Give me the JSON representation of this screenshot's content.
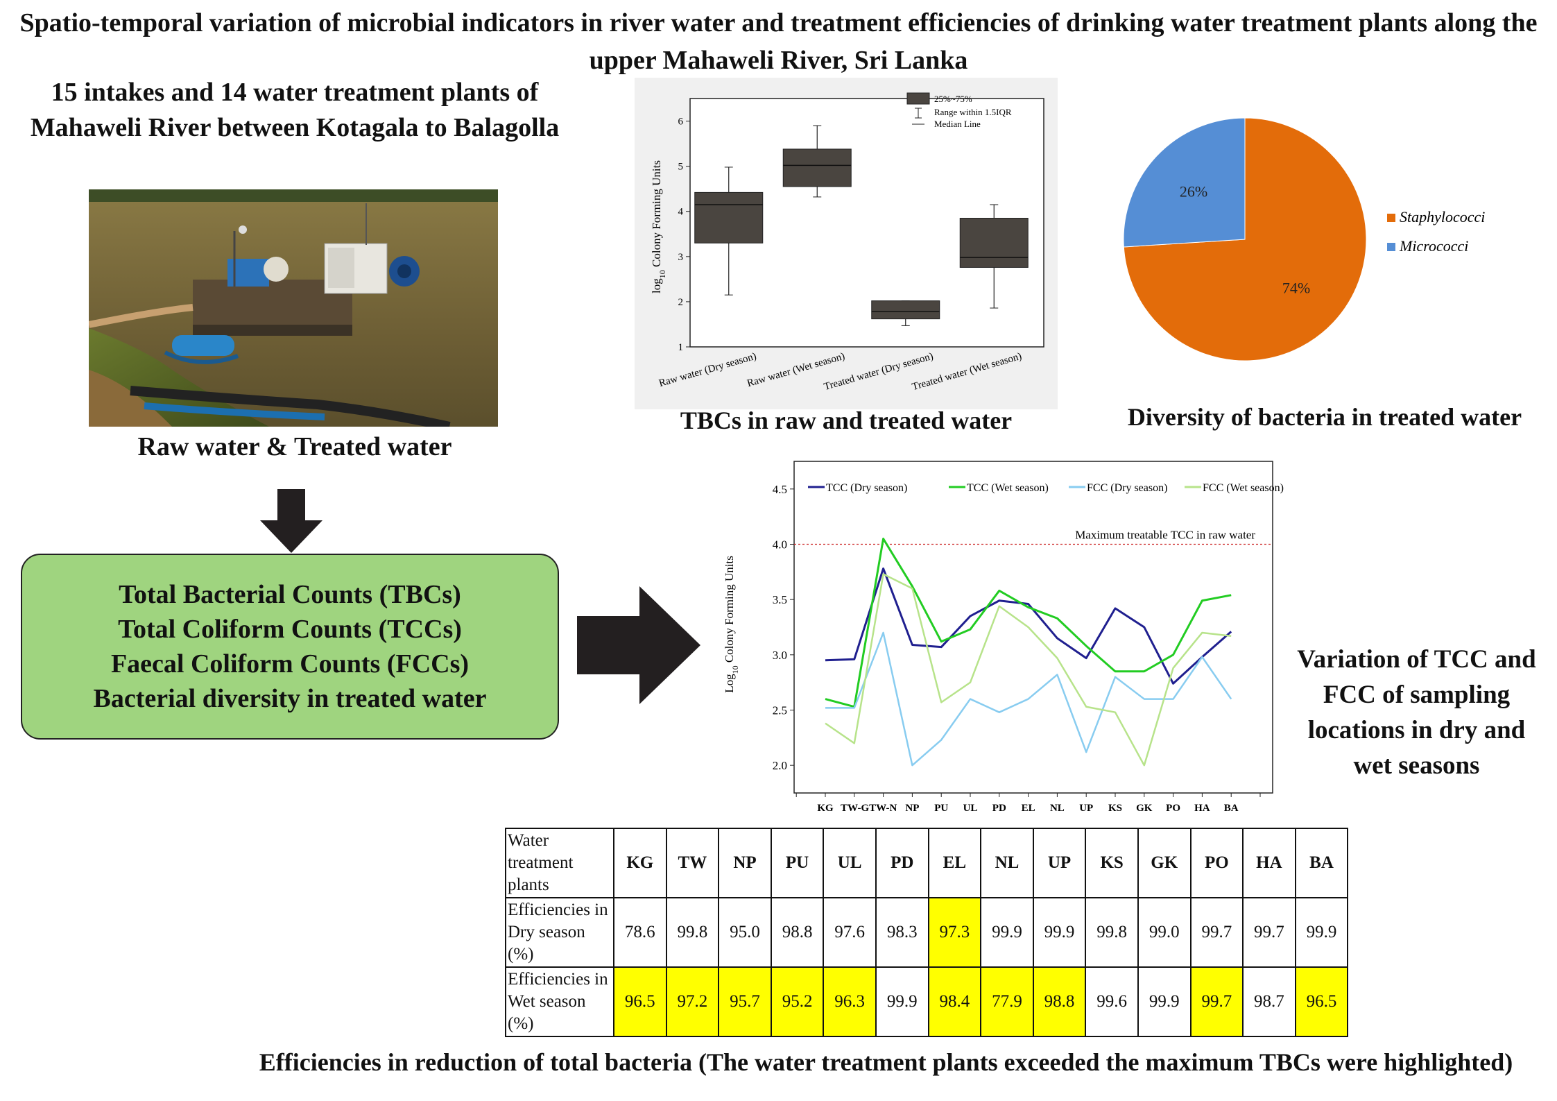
{
  "title": "Spatio-temporal variation of microbial indicators in river water and treatment efficiencies of drinking water treatment plants along the upper Mahaweli River, Sri Lanka",
  "left_panel": {
    "heading": "15 intakes and 14 water treatment plants of Mahaweli River between Kotagala to Balagolla",
    "photo_caption": "Raw water &  Treated water"
  },
  "parameters_box": {
    "items": [
      "Total Bacterial Counts (TBCs)",
      "Total Coliform Counts (TCCs)",
      "Faecal Coliform Counts (FCCs)",
      "Bacterial diversity in treated water"
    ]
  },
  "colors": {
    "box_fill": "#9fd47f",
    "arrow": "#231f20",
    "boxplot_fill": "#4a4540",
    "pie_orange": "#e36c0a",
    "pie_blue": "#558ed5",
    "tcc_dry": "#1f1f8f",
    "tcc_wet": "#22cc22",
    "fcc_dry": "#88ccf0",
    "fcc_wet": "#b7e38a",
    "threshold": "#cc2222",
    "highlight": "#ffff00"
  },
  "chart_data": [
    {
      "type": "box",
      "caption": "TBCs in raw and treated water",
      "ylabel_prefix": "log",
      "ylabel_sub": "10",
      "ylabel_suffix": " Colony Forming Units",
      "ylim": [
        1,
        6.5
      ],
      "yticks": [
        "1",
        "2",
        "3",
        "4",
        "5",
        "6"
      ],
      "legend": [
        "25%~75%",
        "Range within 1.5IQR",
        "Median Line"
      ],
      "legend_position": "top-right",
      "categories": [
        "Raw water (Dry season)",
        "Raw water (Wet season)",
        "Treated water (Dry season)",
        "Treated water (Wet season)"
      ],
      "boxes": [
        {
          "whisker_low": 2.15,
          "q1": 3.3,
          "median": 4.15,
          "q3": 4.42,
          "whisker_high": 4.98
        },
        {
          "whisker_low": 4.32,
          "q1": 4.55,
          "median": 5.02,
          "q3": 5.38,
          "whisker_high": 5.9
        },
        {
          "whisker_low": 1.47,
          "q1": 1.62,
          "median": 1.78,
          "q3": 2.02,
          "whisker_high": 2.02
        },
        {
          "whisker_low": 1.86,
          "q1": 2.76,
          "median": 2.98,
          "q3": 3.85,
          "whisker_high": 4.15
        }
      ]
    },
    {
      "type": "pie",
      "caption": "Diversity of bacteria in treated water",
      "slices": [
        {
          "label": "Staphylococci",
          "value": 74,
          "display": "74%"
        },
        {
          "label": "Micrococci",
          "value": 26,
          "display": "26%"
        }
      ],
      "legend_position": "right"
    },
    {
      "type": "line",
      "caption": "Variation of TCC and FCC of sampling locations in dry and wet seasons",
      "ylabel_prefix": "Log",
      "ylabel_sub": "10",
      "ylabel_suffix": " Colony Forming Units",
      "ylim": [
        1.75,
        4.75
      ],
      "yticks": [
        "2.0",
        "2.5",
        "3.0",
        "3.5",
        "4.0",
        "4.5"
      ],
      "threshold": {
        "value": 4.0,
        "label": "Maximum treatable TCC in raw water"
      },
      "x": [
        "KG",
        "TW-G",
        "TW-N",
        "NP",
        "PU",
        "UL",
        "PD",
        "EL",
        "NL",
        "UP",
        "KS",
        "GK",
        "PO",
        "HA",
        "BA"
      ],
      "xtick_labels": [
        "KG",
        "TW-GTW-N",
        "NP",
        "PU",
        "UL",
        "PD",
        "EL",
        "NL",
        "UP",
        "KS",
        "GK",
        "PO",
        "HA",
        "BA"
      ],
      "legend_position": "top",
      "series": [
        {
          "name": "TCC (Dry season)",
          "values": [
            2.95,
            2.96,
            3.78,
            3.09,
            3.07,
            3.35,
            3.49,
            3.46,
            3.15,
            2.97,
            3.42,
            3.25,
            2.74,
            2.98,
            3.21
          ]
        },
        {
          "name": "TCC (Wet season)",
          "values": [
            2.6,
            2.53,
            4.05,
            3.62,
            3.12,
            3.23,
            3.58,
            3.43,
            3.33,
            3.08,
            2.85,
            2.85,
            3.0,
            3.49,
            3.54
          ]
        },
        {
          "name": "FCC (Dry season)",
          "values": [
            2.52,
            2.52,
            3.2,
            2.0,
            2.23,
            2.6,
            2.48,
            2.6,
            2.82,
            2.12,
            2.8,
            2.6,
            2.6,
            2.98,
            2.6
          ]
        },
        {
          "name": "FCC (Wet season)",
          "values": [
            2.38,
            2.2,
            3.73,
            3.6,
            2.57,
            2.75,
            3.44,
            3.25,
            2.97,
            2.53,
            2.48,
            2.0,
            2.88,
            3.2,
            3.17
          ]
        }
      ]
    }
  ],
  "efficiency_table": {
    "caption": "Efficiencies in reduction of total bacteria (The water treatment plants exceeded the maximum TBCs were highlighted)",
    "header_label": "Water treatment plants",
    "plants": [
      "KG",
      "TW",
      "NP",
      "PU",
      "UL",
      "PD",
      "EL",
      "NL",
      "UP",
      "KS",
      "GK",
      "PO",
      "HA",
      "BA"
    ],
    "rows": [
      {
        "label": "Efficiencies in Dry season (%)",
        "values": [
          "78.6",
          "99.8",
          "95.0",
          "98.8",
          "97.6",
          "98.3",
          "97.3",
          "99.9",
          "99.9",
          "99.8",
          "99.0",
          "99.7",
          "99.7",
          "99.9"
        ],
        "highlighted": [
          false,
          false,
          false,
          false,
          false,
          false,
          true,
          false,
          false,
          false,
          false,
          false,
          false,
          false
        ]
      },
      {
        "label": "Efficiencies in Wet season (%)",
        "values": [
          "96.5",
          "97.2",
          "95.7",
          "95.2",
          "96.3",
          "99.9",
          "98.4",
          "77.9",
          "98.8",
          "99.6",
          "99.9",
          "99.7",
          "98.7",
          "96.5"
        ],
        "highlighted": [
          true,
          true,
          true,
          true,
          true,
          false,
          true,
          true,
          true,
          false,
          false,
          true,
          false,
          true
        ]
      }
    ]
  }
}
